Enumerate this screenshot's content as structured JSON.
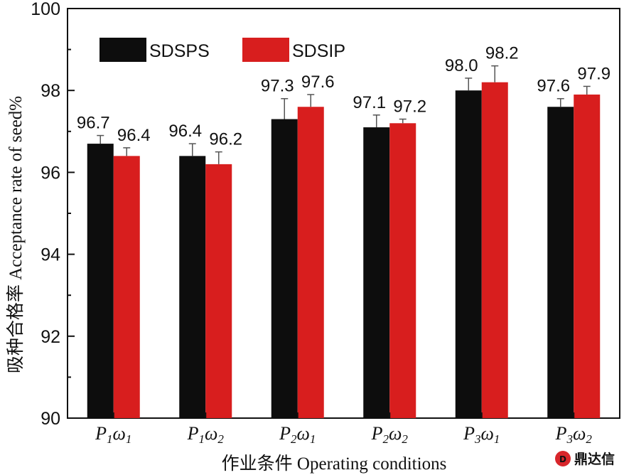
{
  "chart_data": {
    "type": "bar",
    "categories": [
      {
        "base": "P",
        "sub1": "1",
        "greek": "ω",
        "sub2": "1"
      },
      {
        "base": "P",
        "sub1": "1",
        "greek": "ω",
        "sub2": "2"
      },
      {
        "base": "P",
        "sub1": "2",
        "greek": "ω",
        "sub2": "1"
      },
      {
        "base": "P",
        "sub1": "2",
        "greek": "ω",
        "sub2": "2"
      },
      {
        "base": "P",
        "sub1": "3",
        "greek": "ω",
        "sub2": "1"
      },
      {
        "base": "P",
        "sub1": "3",
        "greek": "ω",
        "sub2": "2"
      }
    ],
    "series": [
      {
        "name": "SDSPS",
        "color": "#0d0d0d",
        "values": [
          96.7,
          96.4,
          97.3,
          97.1,
          98.0,
          97.6
        ],
        "labels": [
          "96.7",
          "96.4",
          "97.3",
          "97.1",
          "98.0",
          "97.6"
        ],
        "errors": [
          0.2,
          0.3,
          0.5,
          0.3,
          0.3,
          0.2
        ]
      },
      {
        "name": "SDSIP",
        "color": "#d81e1e",
        "values": [
          96.4,
          96.2,
          97.6,
          97.2,
          98.2,
          97.9
        ],
        "labels": [
          "96.4",
          "96.2",
          "97.6",
          "97.2",
          "98.2",
          "97.9"
        ],
        "errors": [
          0.2,
          0.3,
          0.3,
          0.1,
          0.4,
          0.2
        ]
      }
    ],
    "ylim": [
      90,
      100
    ],
    "yticks": [
      90,
      92,
      94,
      96,
      98,
      100
    ],
    "ylabel": "吸种合格率 Acceptance rate of seed%",
    "xlabel": "作业条件 Operating conditions",
    "legend_position": "top-left",
    "grid": false
  },
  "watermark": {
    "icon": "dingda-logo-icon",
    "text": "鼎达信",
    "color": "#d8262b"
  }
}
